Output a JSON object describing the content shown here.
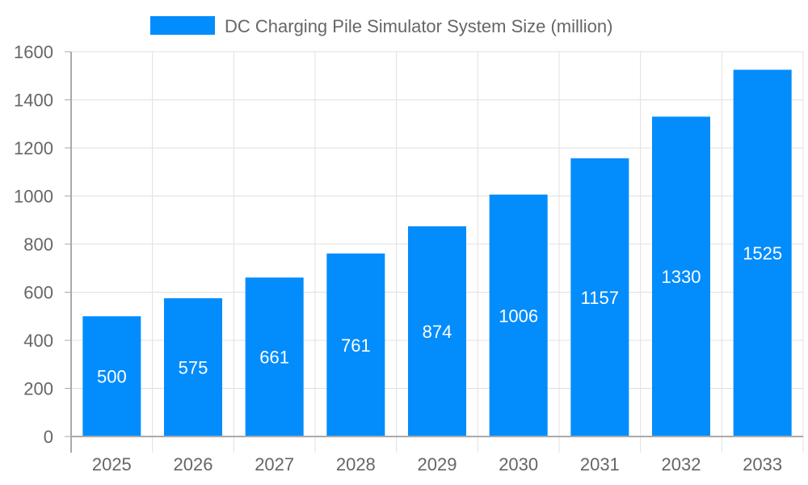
{
  "chart_data": {
    "type": "bar",
    "categories": [
      "2025",
      "2026",
      "2027",
      "2028",
      "2029",
      "2030",
      "2031",
      "2032",
      "2033"
    ],
    "series": [
      {
        "name": "DC Charging Pile Simulator System Size (million)",
        "values": [
          500,
          575,
          661,
          761,
          874,
          1006,
          1157,
          1330,
          1525
        ]
      }
    ],
    "ylim": [
      0,
      1600
    ],
    "yticks": [
      0,
      200,
      400,
      600,
      800,
      1000,
      1200,
      1400,
      1600
    ],
    "grid": true,
    "legend": "top",
    "data_labels": true,
    "colors": {
      "bar": "#038cfc",
      "grid": "#e0e0e0",
      "axis": "#aaaaaa",
      "text": "#666666",
      "label": "#ffffff"
    }
  }
}
